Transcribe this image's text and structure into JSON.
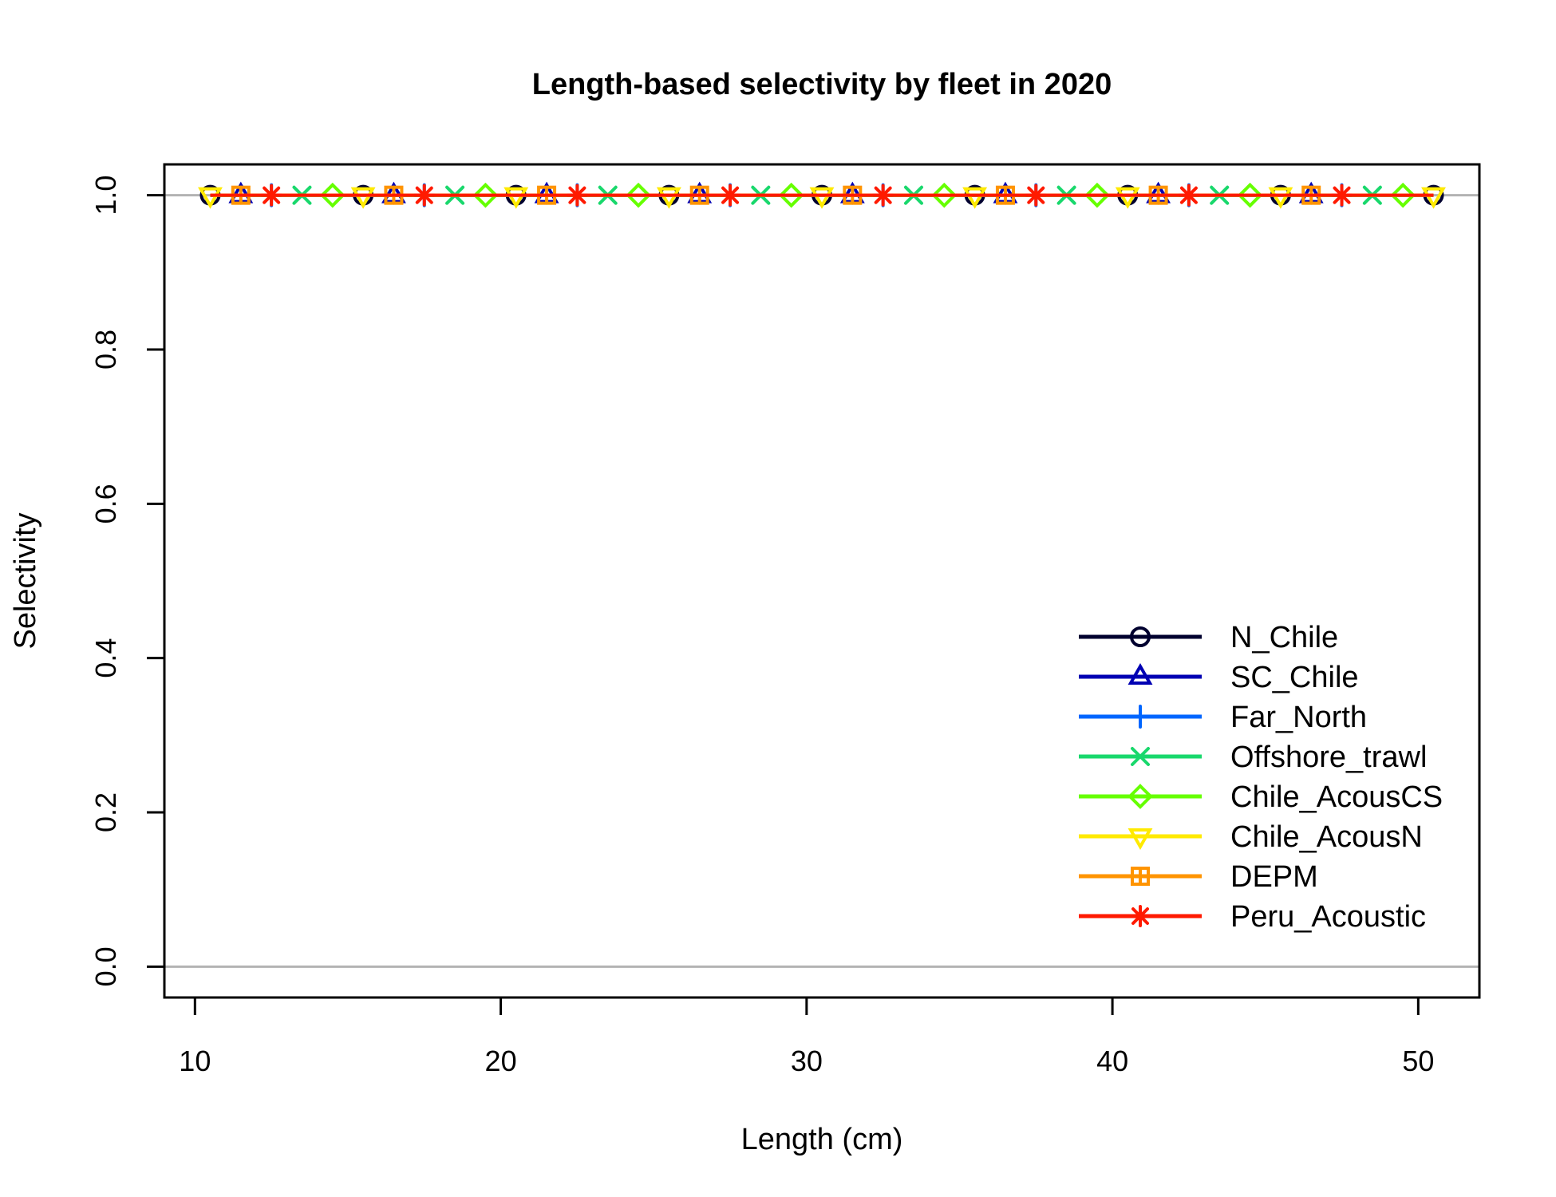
{
  "chart_data": {
    "type": "line",
    "title": "Length-based selectivity by fleet in 2020",
    "xlabel": "Length (cm)",
    "ylabel": "Selectivity",
    "xlim": [
      9,
      52
    ],
    "ylim": [
      -0.04,
      1.04
    ],
    "xticks": [
      10,
      20,
      30,
      40,
      50
    ],
    "yticks": [
      0.0,
      0.2,
      0.4,
      0.6,
      0.8,
      1.0
    ],
    "xtick_labels": [
      "10",
      "20",
      "30",
      "40",
      "50"
    ],
    "ytick_labels": [
      "0.0",
      "0.2",
      "0.4",
      "0.6",
      "0.8",
      "1.0"
    ],
    "reference_lines_y": [
      0.0,
      1.0
    ],
    "reference_line_color": "#b3b3b3",
    "grid": false,
    "legend_position": "bottom-right",
    "x": [
      10.5,
      11.5,
      12.5,
      13.5,
      14.5,
      15.5,
      16.5,
      17.5,
      18.5,
      19.5,
      20.5,
      21.5,
      22.5,
      23.5,
      24.5,
      25.5,
      26.5,
      27.5,
      28.5,
      29.5,
      30.5,
      31.5,
      32.5,
      33.5,
      34.5,
      35.5,
      36.5,
      37.5,
      38.5,
      39.5,
      40.5,
      41.5,
      42.5,
      43.5,
      44.5,
      45.5,
      46.5,
      47.5,
      48.5,
      49.5,
      50.5
    ],
    "series": [
      {
        "name": "N_Chile",
        "color": "#00002f",
        "marker": "circle",
        "marker_offset": 0,
        "value": 1.0
      },
      {
        "name": "SC_Chile",
        "color": "#0000b3",
        "marker": "triangle-up",
        "marker_offset": 1,
        "value": 1.0
      },
      {
        "name": "Far_North",
        "color": "#0066ff",
        "marker": "plus",
        "marker_offset": 2,
        "value": 1.0
      },
      {
        "name": "Offshore_trawl",
        "color": "#19d86c",
        "marker": "cross",
        "marker_offset": 3,
        "value": 1.0
      },
      {
        "name": "Chile_AcousCS",
        "color": "#66ff00",
        "marker": "diamond",
        "marker_offset": 4,
        "value": 1.0
      },
      {
        "name": "Chile_AcousN",
        "color": "#ffea00",
        "marker": "triangle-down",
        "marker_offset": 0,
        "value": 1.0
      },
      {
        "name": "DEPM",
        "color": "#ff9400",
        "marker": "square-cross",
        "marker_offset": 1,
        "value": 1.0
      },
      {
        "name": "Peru_Acoustic",
        "color": "#ff1a00",
        "marker": "asterisk",
        "marker_offset": 2,
        "value": 1.0
      }
    ],
    "marker_every": 5
  }
}
